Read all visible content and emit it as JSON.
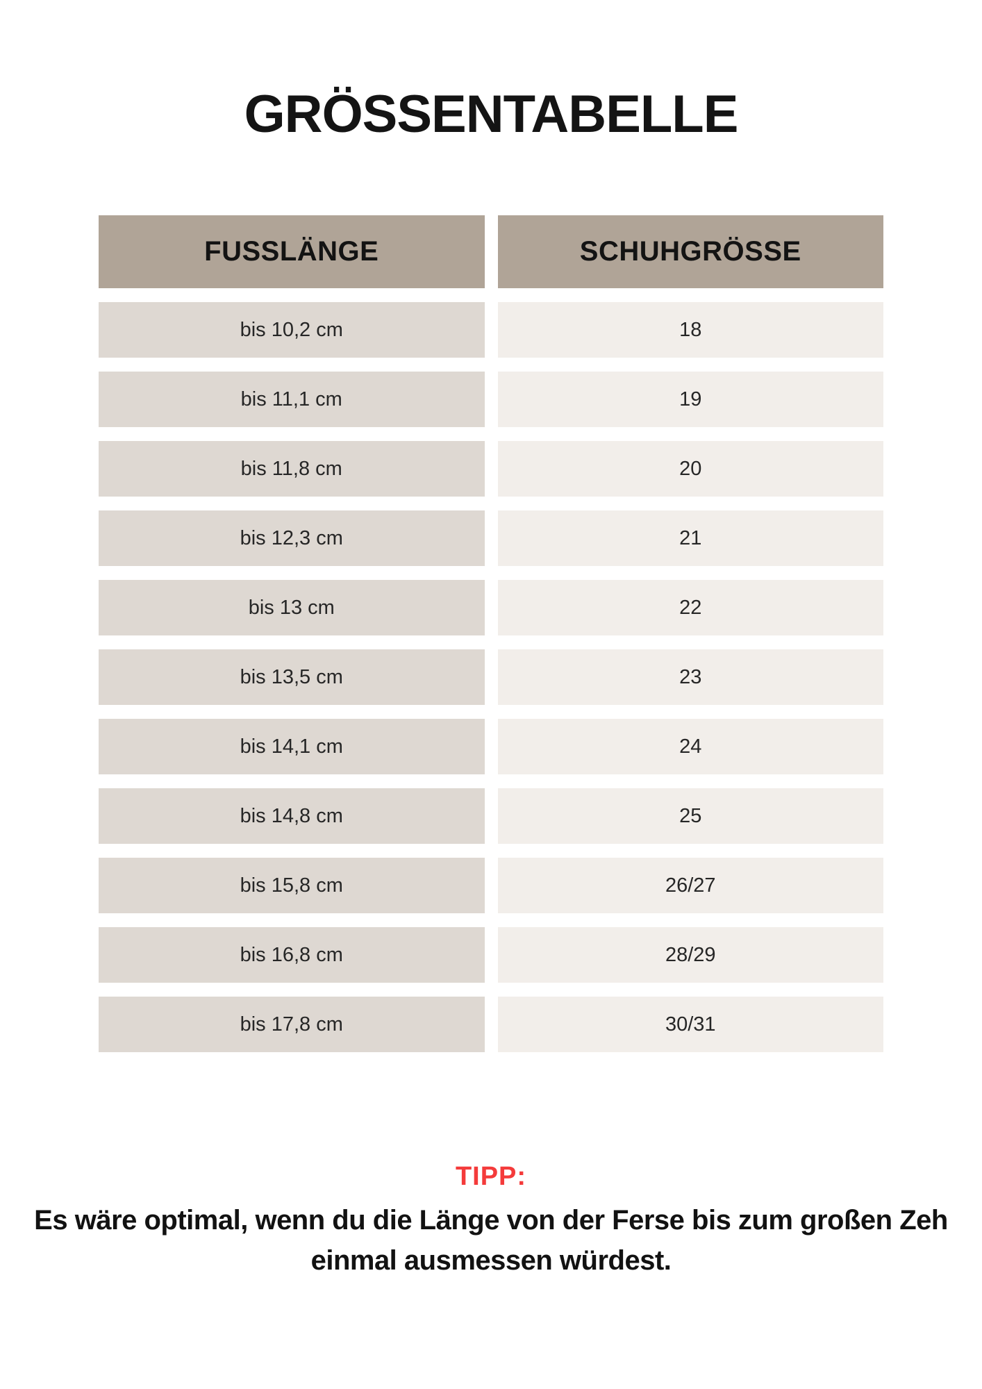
{
  "page": {
    "title": "GRÖSSENTABELLE"
  },
  "table": {
    "headers": {
      "foot_length": "FUSSLÄNGE",
      "shoe_size": "SCHUHGRÖSSE"
    },
    "rows": [
      {
        "foot_length": "bis 10,2 cm",
        "shoe_size": "18"
      },
      {
        "foot_length": "bis 11,1 cm",
        "shoe_size": "19"
      },
      {
        "foot_length": "bis 11,8 cm",
        "shoe_size": "20"
      },
      {
        "foot_length": "bis 12,3 cm",
        "shoe_size": "21"
      },
      {
        "foot_length": "bis 13 cm",
        "shoe_size": "22"
      },
      {
        "foot_length": "bis 13,5 cm",
        "shoe_size": "23"
      },
      {
        "foot_length": "bis 14,1 cm",
        "shoe_size": "24"
      },
      {
        "foot_length": "bis 14,8 cm",
        "shoe_size": "25"
      },
      {
        "foot_length": "bis 15,8 cm",
        "shoe_size": "26/27"
      },
      {
        "foot_length": "bis 16,8 cm",
        "shoe_size": "28/29"
      },
      {
        "foot_length": "bis 17,8 cm",
        "shoe_size": "30/31"
      }
    ]
  },
  "tip": {
    "label": "TIPP:",
    "line1": "Es wäre optimal, wenn du die Länge von der Ferse bis zum großen Zeh",
    "line2": "einmal ausmessen würdest."
  },
  "colors": {
    "header_bg": "#b0a497",
    "left_cell_bg": "#ded8d2",
    "right_cell_bg": "#f2eeea",
    "tip_red": "#f43b3b"
  }
}
